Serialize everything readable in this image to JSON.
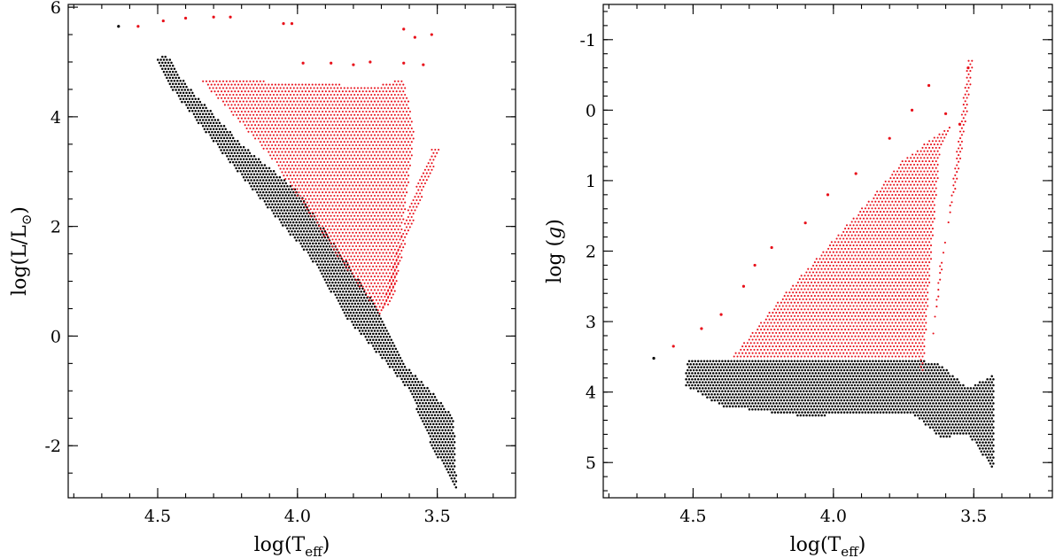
{
  "chart_data": [
    {
      "type": "scatter",
      "title": "",
      "xlabel": "log(T",
      "xlabel_sub": "eff",
      "xlabel_close": ")",
      "ylabel": "log(L/L",
      "ylabel_sub": "⊙",
      "ylabel_close": ")",
      "xlim": [
        4.82,
        3.22
      ],
      "ylim": [
        -2.95,
        6.05
      ],
      "x_reversed": true,
      "y_reversed": false,
      "xticks": [
        {
          "v": 4.5,
          "label": "4.5"
        },
        {
          "v": 4.0,
          "label": "4.0"
        },
        {
          "v": 3.5,
          "label": "3.5"
        }
      ],
      "yticks": [
        {
          "v": -2,
          "label": "-2"
        },
        {
          "v": 0,
          "label": "0"
        },
        {
          "v": 2,
          "label": "2"
        },
        {
          "v": 4,
          "label": "4"
        },
        {
          "v": 6,
          "label": "6"
        }
      ],
      "series": [
        {
          "color": "#000000",
          "region": "main-sequence band",
          "outline": [
            [
              4.51,
              5.05
            ],
            [
              4.47,
              5.15
            ],
            [
              4.4,
              4.6
            ],
            [
              4.2,
              3.5
            ],
            [
              4.0,
              2.65
            ],
            [
              3.85,
              1.55
            ],
            [
              3.7,
              0.4
            ],
            [
              3.62,
              -0.5
            ],
            [
              3.52,
              -1.0
            ],
            [
              3.44,
              -1.5
            ],
            [
              3.43,
              -2.85
            ],
            [
              3.52,
              -2.0
            ],
            [
              3.6,
              -1.0
            ],
            [
              3.7,
              -0.4
            ],
            [
              3.82,
              0.3
            ],
            [
              3.95,
              1.4
            ],
            [
              4.2,
              2.9
            ],
            [
              4.45,
              4.5
            ]
          ]
        },
        {
          "color": "#e8101a",
          "region": "post main-sequence fan",
          "outline": [
            [
              4.44,
              5.2
            ],
            [
              4.35,
              4.7
            ],
            [
              3.9,
              4.6
            ],
            [
              3.72,
              4.55
            ],
            [
              3.62,
              4.7
            ],
            [
              3.58,
              3.7
            ],
            [
              3.65,
              0.9
            ],
            [
              3.7,
              0.35
            ],
            [
              3.85,
              1.4
            ],
            [
              4.1,
              3.3
            ]
          ]
        },
        {
          "color": "#e8101a",
          "region": "red giant branches",
          "outline": [
            [
              3.7,
              0.45
            ],
            [
              3.6,
              2.4
            ],
            [
              3.52,
              3.4
            ],
            [
              3.49,
              3.4
            ],
            [
              3.55,
              2.6
            ],
            [
              3.62,
              1.6
            ],
            [
              3.66,
              0.6
            ]
          ]
        }
      ],
      "isolated_points": [
        {
          "x": 4.64,
          "y": 5.65,
          "color": "#000000"
        },
        {
          "x": 4.57,
          "y": 5.65,
          "color": "#e8101a"
        },
        {
          "x": 4.48,
          "y": 5.75,
          "color": "#e8101a"
        },
        {
          "x": 4.4,
          "y": 5.8,
          "color": "#e8101a"
        },
        {
          "x": 4.3,
          "y": 5.82,
          "color": "#e8101a"
        },
        {
          "x": 4.24,
          "y": 5.82,
          "color": "#e8101a"
        },
        {
          "x": 4.05,
          "y": 5.7,
          "color": "#e8101a"
        },
        {
          "x": 4.02,
          "y": 5.7,
          "color": "#e8101a"
        },
        {
          "x": 3.62,
          "y": 5.6,
          "color": "#e8101a"
        },
        {
          "x": 3.58,
          "y": 5.45,
          "color": "#e8101a"
        },
        {
          "x": 3.74,
          "y": 5.0,
          "color": "#e8101a"
        },
        {
          "x": 3.8,
          "y": 4.95,
          "color": "#e8101a"
        },
        {
          "x": 3.88,
          "y": 4.98,
          "color": "#e8101a"
        },
        {
          "x": 3.98,
          "y": 4.98,
          "color": "#e8101a"
        },
        {
          "x": 3.62,
          "y": 4.98,
          "color": "#e8101a"
        },
        {
          "x": 3.55,
          "y": 4.95,
          "color": "#e8101a"
        },
        {
          "x": 3.52,
          "y": 5.5,
          "color": "#e8101a"
        }
      ]
    },
    {
      "type": "scatter",
      "title": "",
      "xlabel": "log(T",
      "xlabel_sub": "eff",
      "xlabel_close": ")",
      "ylabel": "log (",
      "ylabel_italic": "g",
      "ylabel_close": ")",
      "xlim": [
        4.82,
        3.22
      ],
      "ylim": [
        -1.5,
        5.5
      ],
      "x_reversed": true,
      "y_reversed": true,
      "xticks": [
        {
          "v": 4.5,
          "label": "4.5"
        },
        {
          "v": 4.0,
          "label": "4.0"
        },
        {
          "v": 3.5,
          "label": "3.5"
        }
      ],
      "yticks": [
        {
          "v": -1,
          "label": "-1"
        },
        {
          "v": 0,
          "label": "0"
        },
        {
          "v": 1,
          "label": "1"
        },
        {
          "v": 2,
          "label": "2"
        },
        {
          "v": 3,
          "label": "3"
        },
        {
          "v": 4,
          "label": "4"
        },
        {
          "v": 5,
          "label": "5"
        }
      ],
      "series": [
        {
          "color": "#000000",
          "region": "main-sequence band",
          "outline": [
            [
              4.52,
              3.55
            ],
            [
              3.72,
              3.52
            ],
            [
              3.62,
              3.6
            ],
            [
              3.52,
              3.95
            ],
            [
              3.43,
              3.75
            ],
            [
              3.43,
              5.1
            ],
            [
              3.52,
              4.6
            ],
            [
              3.62,
              4.65
            ],
            [
              3.72,
              4.3
            ],
            [
              3.9,
              4.3
            ],
            [
              4.1,
              4.35
            ],
            [
              4.4,
              4.2
            ],
            [
              4.53,
              3.9
            ]
          ]
        },
        {
          "color": "#e8101a",
          "region": "post main-sequence fan",
          "outline": [
            [
              4.36,
              3.5
            ],
            [
              3.7,
              3.5
            ],
            [
              3.68,
              3.75
            ],
            [
              3.65,
              2.0
            ],
            [
              3.62,
              0.6
            ],
            [
              3.58,
              0.2
            ],
            [
              3.75,
              0.7
            ],
            [
              3.9,
              1.4
            ],
            [
              4.15,
              2.5
            ]
          ]
        },
        {
          "color": "#e8101a",
          "region": "red giant branches",
          "outline": [
            [
              3.65,
              3.4
            ],
            [
              3.58,
              1.2
            ],
            [
              3.52,
              -0.7
            ],
            [
              3.5,
              -0.7
            ],
            [
              3.55,
              0.8
            ],
            [
              3.62,
              2.2
            ]
          ]
        }
      ],
      "isolated_points": [
        {
          "x": 4.64,
          "y": 3.52,
          "color": "#000000"
        },
        {
          "x": 4.57,
          "y": 3.35,
          "color": "#e8101a"
        },
        {
          "x": 4.47,
          "y": 3.1,
          "color": "#e8101a"
        },
        {
          "x": 4.4,
          "y": 2.9,
          "color": "#e8101a"
        },
        {
          "x": 4.32,
          "y": 2.5,
          "color": "#e8101a"
        },
        {
          "x": 4.28,
          "y": 2.2,
          "color": "#e8101a"
        },
        {
          "x": 4.22,
          "y": 1.95,
          "color": "#e8101a"
        },
        {
          "x": 4.1,
          "y": 1.6,
          "color": "#e8101a"
        },
        {
          "x": 4.02,
          "y": 1.2,
          "color": "#e8101a"
        },
        {
          "x": 3.92,
          "y": 0.9,
          "color": "#e8101a"
        },
        {
          "x": 3.8,
          "y": 0.4,
          "color": "#e8101a"
        },
        {
          "x": 3.72,
          "y": 0.0,
          "color": "#e8101a"
        },
        {
          "x": 3.66,
          "y": -0.35,
          "color": "#e8101a"
        },
        {
          "x": 3.6,
          "y": 0.05,
          "color": "#e8101a"
        },
        {
          "x": 3.55,
          "y": 0.2,
          "color": "#e8101a"
        },
        {
          "x": 3.52,
          "y": -0.6,
          "color": "#e8101a"
        }
      ]
    }
  ]
}
